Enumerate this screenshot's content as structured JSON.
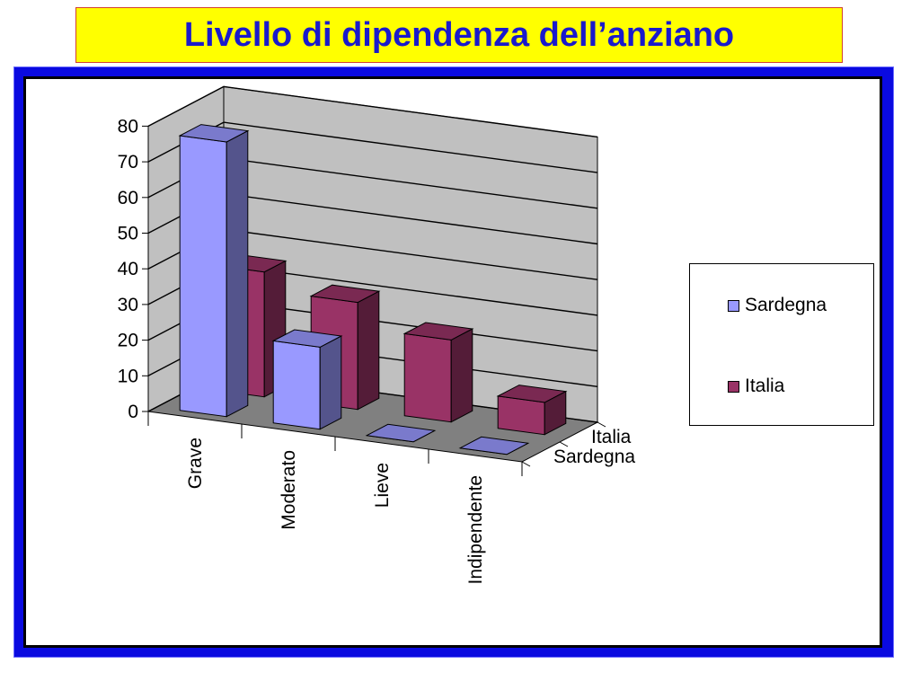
{
  "title": "Livello di dipendenza dell’anziano",
  "colors": {
    "title_bg": "#ffff00",
    "title_text": "#1a1acc",
    "frame": "#0a0ae0",
    "sardegna": "#9999ff",
    "italia": "#993366"
  },
  "legend": {
    "items": [
      {
        "label": "Sardegna",
        "color": "#9999ff"
      },
      {
        "label": "Italia",
        "color": "#993366"
      }
    ]
  },
  "chart_data": {
    "type": "bar",
    "categories": [
      "Grave",
      "Moderato",
      "Lieve",
      "Indipendente"
    ],
    "series": [
      {
        "name": "Sardegna",
        "values": [
          77,
          23,
          0,
          0
        ]
      },
      {
        "name": "Italia",
        "values": [
          35,
          30,
          23,
          9
        ]
      }
    ],
    "depth_labels": [
      "Italia",
      "Sardegna"
    ],
    "y_ticks": [
      0,
      10,
      20,
      30,
      40,
      50,
      60,
      70,
      80
    ],
    "ylim": [
      0,
      80
    ],
    "grid": true,
    "legend_position": "right",
    "xlabel": "",
    "ylabel": ""
  }
}
